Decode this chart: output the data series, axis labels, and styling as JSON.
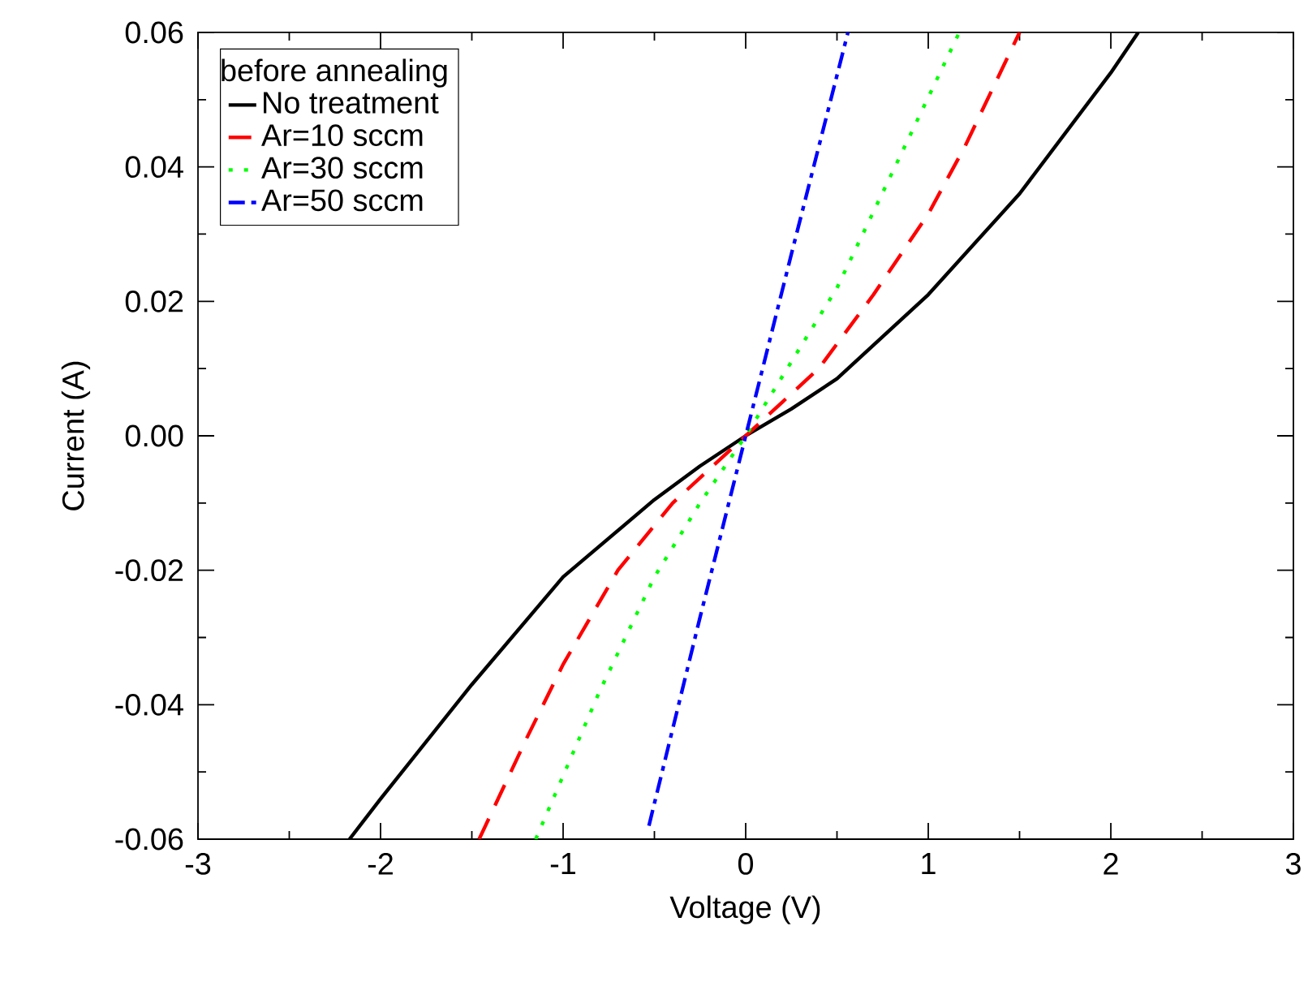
{
  "chart_data": {
    "type": "line",
    "xlabel": "Voltage (V)",
    "ylabel": "Current (A)",
    "legend_title": "before annealing",
    "legend": "top left",
    "grid": false,
    "marker": "none",
    "xlim": [
      -3,
      3
    ],
    "ylim": [
      -0.06,
      0.06
    ],
    "xticks": [
      -3,
      -2,
      -1,
      0,
      1,
      2,
      3
    ],
    "yticks": [
      {
        "value": -0.06,
        "label": "-0.06"
      },
      {
        "value": -0.04,
        "label": "-0.04"
      },
      {
        "value": -0.02,
        "label": "-0.02"
      },
      {
        "value": 0,
        "label": "0.00"
      },
      {
        "value": 0.02,
        "label": "0.02"
      },
      {
        "value": 0.04,
        "label": "0.04"
      },
      {
        "value": 0.06,
        "label": "0.06"
      }
    ],
    "series": [
      {
        "name": "No treatment",
        "color": "#000000",
        "line_style": "solid",
        "x": [
          -2.17,
          -2,
          -1.5,
          -1,
          -0.5,
          -0.25,
          0,
          0.25,
          0.5,
          1,
          1.5,
          2,
          2.15
        ],
        "values": [
          -0.06,
          -0.054,
          -0.037,
          -0.021,
          -0.0095,
          -0.0045,
          0,
          0.004,
          0.0085,
          0.021,
          0.036,
          0.054,
          0.06
        ]
      },
      {
        "name": "Ar=10 sccm",
        "color": "#ff0000",
        "line_style": "dashed",
        "x": [
          -1.46,
          -1.2,
          -1,
          -0.7,
          -0.4,
          -0.2,
          0,
          0.2,
          0.4,
          0.7,
          1,
          1.2,
          1.5
        ],
        "values": [
          -0.06,
          -0.045,
          -0.034,
          -0.02,
          -0.01,
          -0.005,
          0,
          0.005,
          0.01,
          0.021,
          0.033,
          0.043,
          0.06
        ]
      },
      {
        "name": "Ar=30 sccm",
        "color": "#00ff00",
        "line_style": "dotted",
        "x": [
          -1.15,
          -0.8,
          -0.5,
          -0.25,
          0,
          0.25,
          0.5,
          0.8,
          1.17
        ],
        "values": [
          -0.06,
          -0.038,
          -0.021,
          -0.01,
          0,
          0.011,
          0.022,
          0.039,
          0.06
        ]
      },
      {
        "name": "Ar=50 sccm",
        "color": "#0000ff",
        "line_style": "dashdot",
        "x": [
          -0.53,
          -0.25,
          0,
          0.25,
          0.56
        ],
        "values": [
          -0.058,
          -0.027,
          0,
          0.027,
          0.06
        ]
      }
    ]
  }
}
